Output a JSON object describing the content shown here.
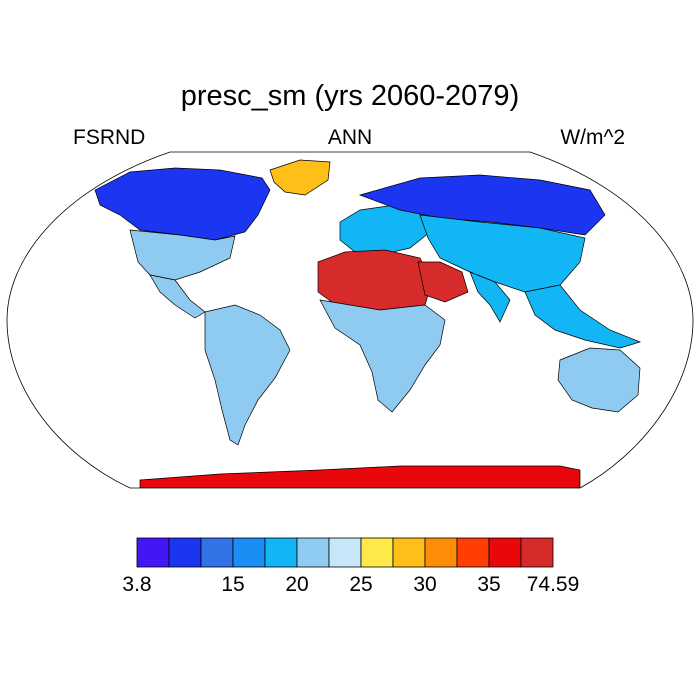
{
  "title": "presc_sm (yrs 2060-2079)",
  "left_label": "FSRND",
  "center_label": "ANN",
  "right_label": "W/m^2",
  "colorbar": {
    "colors": [
      "#4316f5",
      "#1c35f0",
      "#3273e8",
      "#1a8ef5",
      "#13b6f5",
      "#8fcbf0",
      "#c7e6f7",
      "#ffe84a",
      "#ffbf19",
      "#ff8c07",
      "#ff3e05",
      "#e8070a",
      "#d72a2a"
    ],
    "labels": [
      {
        "text": "3.8",
        "boundary": 0
      },
      {
        "text": "15",
        "boundary": 3
      },
      {
        "text": "20",
        "boundary": 5
      },
      {
        "text": "25",
        "boundary": 7
      },
      {
        "text": "30",
        "boundary": 9
      },
      {
        "text": "35",
        "boundary": 11
      },
      {
        "text": "74.59",
        "boundary": 13
      }
    ]
  },
  "regions": [
    {
      "name": "greenland",
      "level": 8
    },
    {
      "name": "north-america",
      "level": 1
    },
    {
      "name": "usa",
      "level": 5
    },
    {
      "name": "mexico",
      "level": 5
    },
    {
      "name": "south-america",
      "level": 5
    },
    {
      "name": "europe",
      "level": 4
    },
    {
      "name": "siberia",
      "level": 1
    },
    {
      "name": "asia",
      "level": 4
    },
    {
      "name": "india",
      "level": 4
    },
    {
      "name": "southeast-asia",
      "level": 4
    },
    {
      "name": "sahara",
      "level": 12
    },
    {
      "name": "arabia",
      "level": 12
    },
    {
      "name": "africa",
      "level": 5
    },
    {
      "name": "australia",
      "level": 5
    },
    {
      "name": "antarctica",
      "level": 11
    }
  ]
}
